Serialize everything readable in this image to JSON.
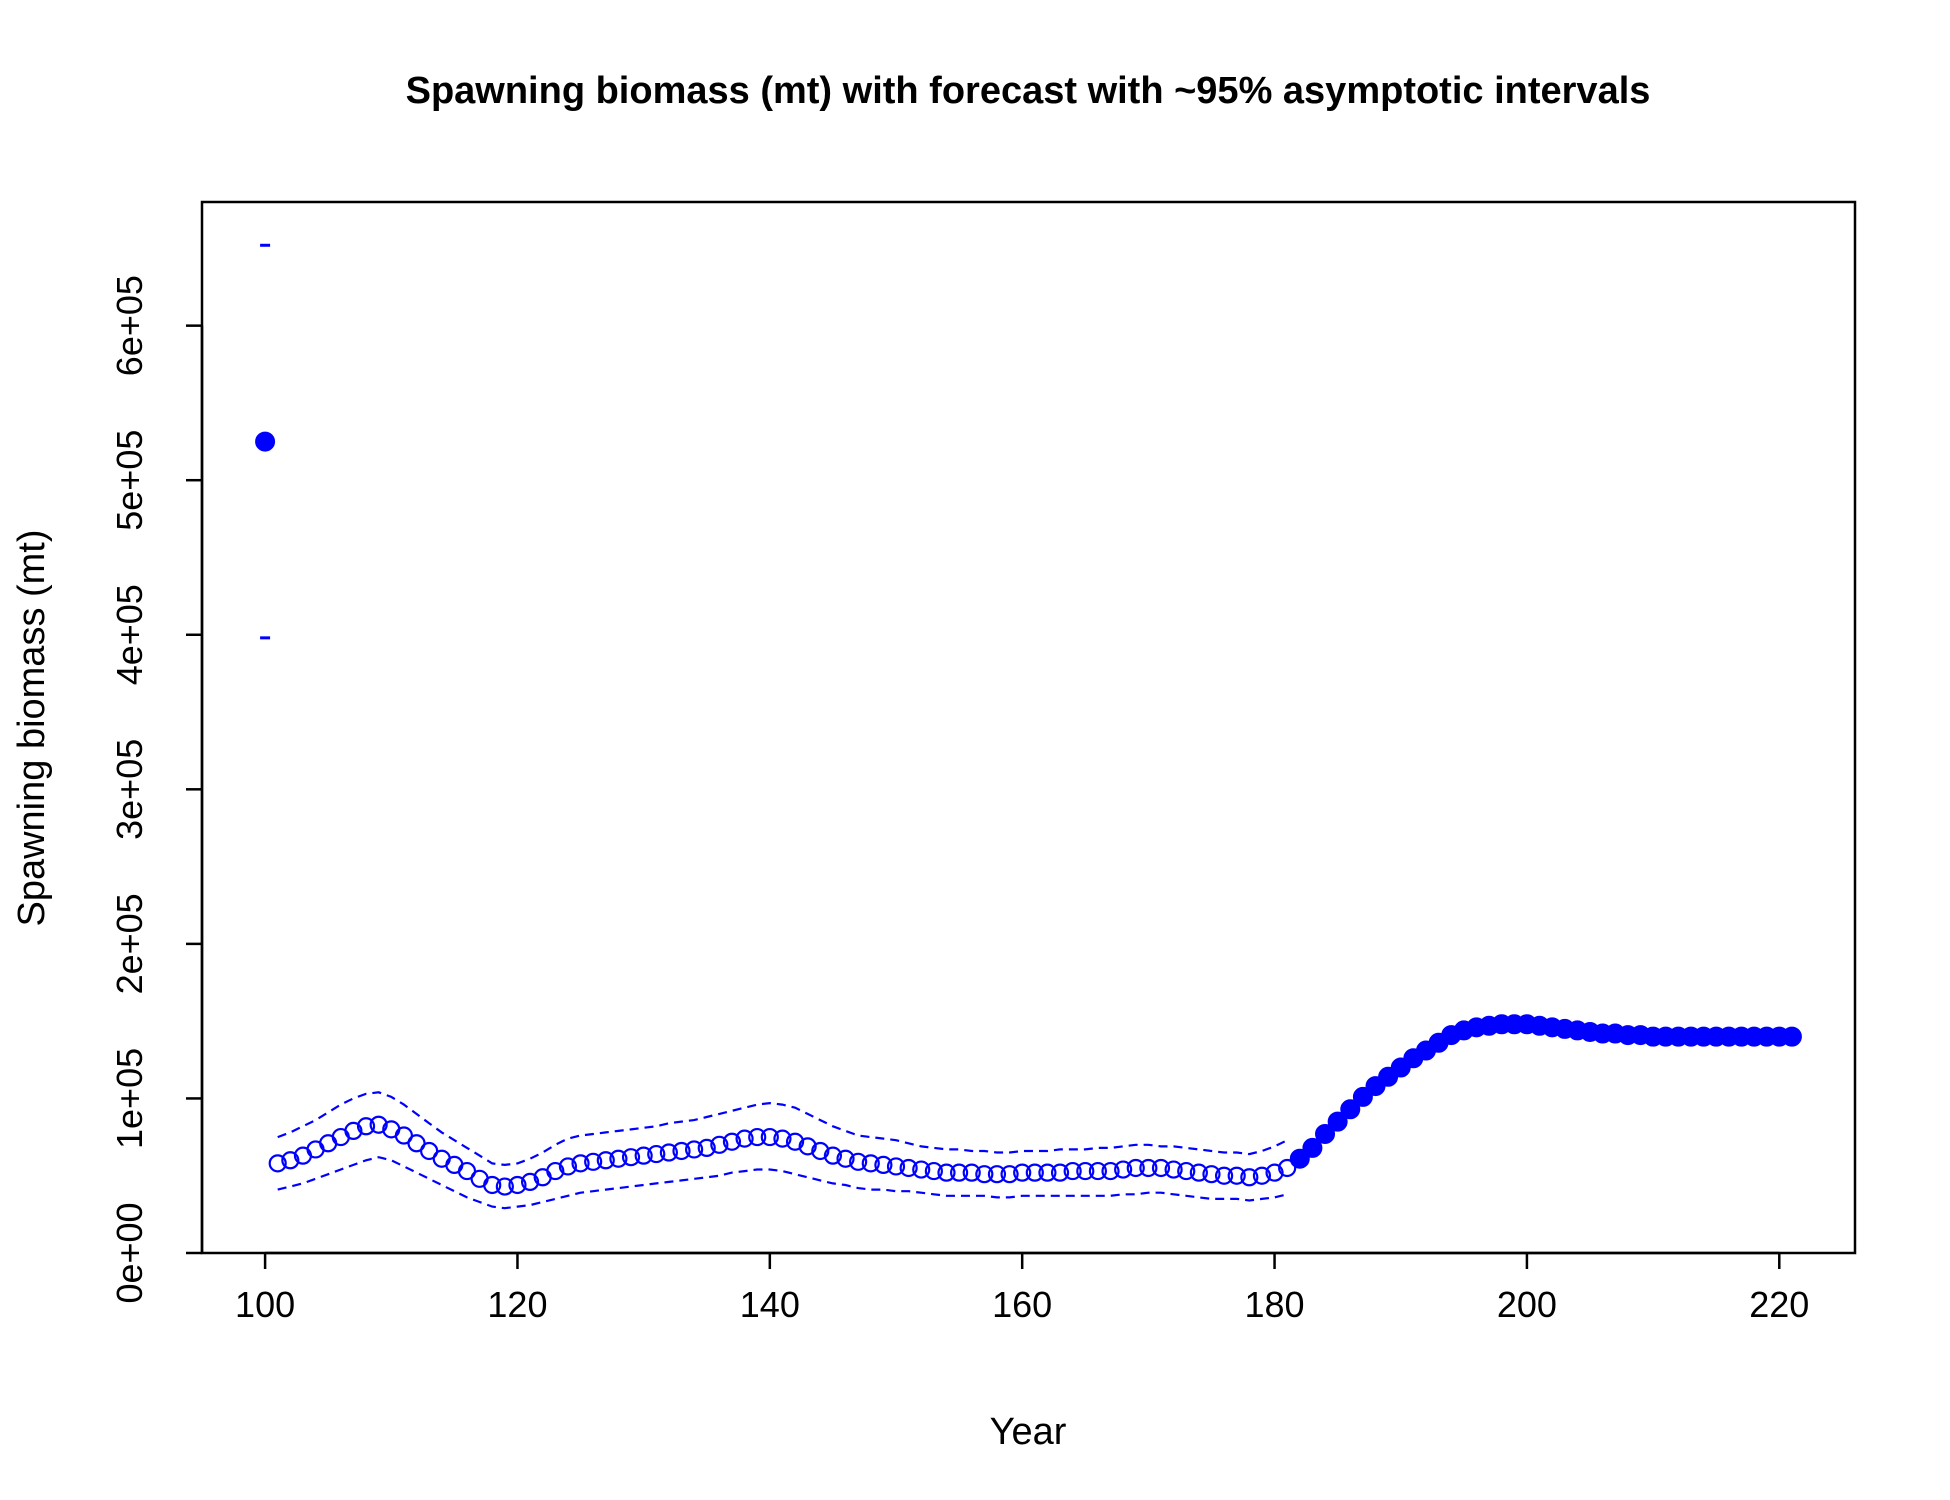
{
  "chart_data": {
    "type": "scatter",
    "title": "Spawning biomass (mt) with forecast with ~95% asymptotic intervals",
    "xlabel": "Year",
    "ylabel": "Spawning biomass (mt)",
    "xlim": [
      95,
      226
    ],
    "ylim": [
      0,
      680000
    ],
    "grid": false,
    "x_ticks": [
      100,
      120,
      140,
      160,
      180,
      200,
      220
    ],
    "x_tick_labels": [
      "100",
      "120",
      "140",
      "160",
      "180",
      "200",
      "220"
    ],
    "y_ticks": [
      0,
      100000,
      200000,
      300000,
      400000,
      500000,
      600000
    ],
    "y_tick_labels": [
      "0e+00",
      "1e+05",
      "2e+05",
      "3e+05",
      "4e+05",
      "5e+05",
      "6e+05"
    ],
    "colors": {
      "series": "#0000ff",
      "axis": "#000000"
    },
    "series": [
      {
        "marker": "filled-circle",
        "points": [
          {
            "x": 100,
            "y": 525000,
            "lower": 398000,
            "upper": 652000
          }
        ]
      },
      {
        "marker": "open-circle",
        "interval": "dashed-line",
        "x": [
          101,
          102,
          103,
          104,
          105,
          106,
          107,
          108,
          109,
          110,
          111,
          112,
          113,
          114,
          115,
          116,
          117,
          118,
          119,
          120,
          121,
          122,
          123,
          124,
          125,
          126,
          127,
          128,
          129,
          130,
          131,
          132,
          133,
          134,
          135,
          136,
          137,
          138,
          139,
          140,
          141,
          142,
          143,
          144,
          145,
          146,
          147,
          148,
          149,
          150,
          151,
          152,
          153,
          154,
          155,
          156,
          157,
          158,
          159,
          160,
          161,
          162,
          163,
          164,
          165,
          166,
          167,
          168,
          169,
          170,
          171,
          172,
          173,
          174,
          175,
          176,
          177,
          178,
          179,
          180,
          181
        ],
        "y": [
          58000,
          60000,
          63000,
          67000,
          71000,
          75000,
          79000,
          82000,
          83000,
          80000,
          76000,
          71000,
          66000,
          61000,
          57000,
          53000,
          48000,
          44000,
          43000,
          44000,
          46000,
          49000,
          53000,
          56000,
          58000,
          59000,
          60000,
          61000,
          62000,
          63000,
          64000,
          65000,
          66000,
          67000,
          68000,
          70000,
          72000,
          74000,
          75000,
          75000,
          74000,
          72000,
          69000,
          66000,
          63000,
          61000,
          59000,
          58000,
          57000,
          56000,
          55000,
          54000,
          53000,
          52000,
          52000,
          52000,
          51000,
          51000,
          51000,
          52000,
          52000,
          52000,
          52000,
          53000,
          53000,
          53000,
          53000,
          54000,
          55000,
          55000,
          55000,
          54000,
          53000,
          52000,
          51000,
          50000,
          50000,
          49000,
          50000,
          52000,
          55000
        ],
        "lower": [
          41000,
          43000,
          45000,
          48000,
          51000,
          54000,
          57000,
          60000,
          62000,
          60000,
          56000,
          52000,
          48000,
          44000,
          40000,
          36000,
          33000,
          30000,
          29000,
          30000,
          31000,
          33000,
          35000,
          37000,
          39000,
          40000,
          41000,
          42000,
          43000,
          44000,
          45000,
          46000,
          47000,
          48000,
          49000,
          50000,
          52000,
          53000,
          54000,
          54000,
          53000,
          51000,
          49000,
          47000,
          45000,
          44000,
          42000,
          41000,
          41000,
          40000,
          40000,
          39000,
          38000,
          37000,
          37000,
          37000,
          37000,
          36000,
          36000,
          37000,
          37000,
          37000,
          37000,
          37000,
          37000,
          37000,
          37000,
          38000,
          38000,
          39000,
          39000,
          38000,
          37000,
          36000,
          35000,
          35000,
          35000,
          34000,
          35000,
          36000,
          38000
        ],
        "upper": [
          75000,
          78000,
          82000,
          86000,
          91000,
          96000,
          100000,
          103000,
          104000,
          101000,
          96000,
          90000,
          84000,
          78000,
          73000,
          68000,
          63000,
          58000,
          57000,
          58000,
          61000,
          65000,
          70000,
          74000,
          76000,
          77000,
          78000,
          79000,
          80000,
          81000,
          82000,
          84000,
          85000,
          86000,
          88000,
          90000,
          92000,
          94000,
          96000,
          97000,
          96000,
          94000,
          90000,
          86000,
          82000,
          79000,
          76000,
          75000,
          74000,
          73000,
          71000,
          69000,
          68000,
          67000,
          67000,
          66000,
          66000,
          65000,
          65000,
          66000,
          66000,
          66000,
          67000,
          67000,
          67000,
          68000,
          68000,
          69000,
          70000,
          70000,
          69000,
          69000,
          68000,
          67000,
          66000,
          65000,
          65000,
          64000,
          66000,
          69000,
          73000
        ]
      },
      {
        "marker": "filled-circle",
        "x": [
          182,
          183,
          184,
          185,
          186,
          187,
          188,
          189,
          190,
          191,
          192,
          193,
          194,
          195,
          196,
          197,
          198,
          199,
          200,
          201,
          202,
          203,
          204,
          205,
          206,
          207,
          208,
          209,
          210,
          211,
          212,
          213,
          214,
          215,
          216,
          217,
          218,
          219,
          220,
          221
        ],
        "y": [
          61000,
          68000,
          77000,
          85000,
          93000,
          101000,
          108000,
          114000,
          120000,
          126000,
          131000,
          136000,
          141000,
          144000,
          146000,
          147000,
          148000,
          148000,
          148000,
          147000,
          146000,
          145000,
          144000,
          143000,
          142000,
          142000,
          141000,
          141000,
          140000,
          140000,
          140000,
          140000,
          140000,
          140000,
          140000,
          140000,
          140000,
          140000,
          140000,
          140000
        ]
      }
    ]
  }
}
